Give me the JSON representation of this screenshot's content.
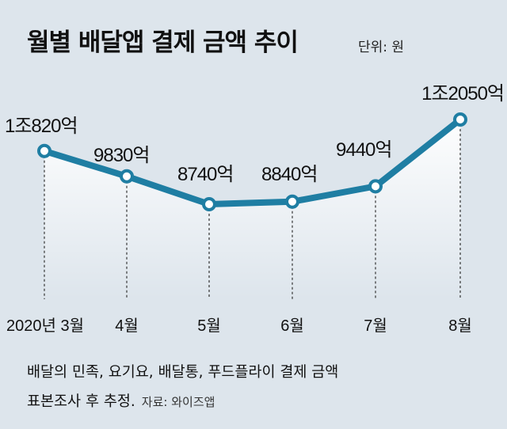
{
  "title": "월별 배달앱 결제 금액 추이",
  "unit_label": "단위: 원",
  "chart_data": {
    "type": "line",
    "title": "월별 배달앱 결제 금액 추이",
    "unit": "원",
    "categories": [
      "2020년 3월",
      "4월",
      "5월",
      "6월",
      "7월",
      "8월"
    ],
    "values": [
      10820,
      9830,
      8740,
      8840,
      9440,
      12050
    ],
    "value_unit": "억",
    "data_labels": [
      "1조820억",
      "9830억",
      "8740억",
      "8840억",
      "9440억",
      "1조2050억"
    ],
    "grid": false,
    "line_color": "#1f7ea3",
    "area_fill": "#ffffff"
  },
  "note": {
    "line1": "배달의 민족, 요기요, 배달통, 푸드플라이 결제 금액",
    "line2": "표본조사 후 추정.",
    "source": "자료: 와이즈앱"
  }
}
